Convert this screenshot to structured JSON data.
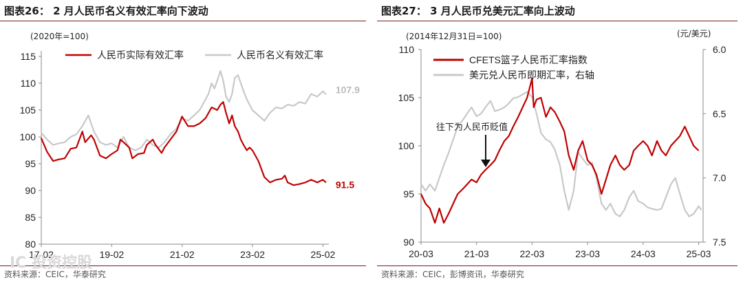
{
  "left": {
    "title": "图表26：  2 月人民币名义有效汇率向下波动",
    "unit": "(2020年=100)",
    "source": "资料来源：CEIC，华泰研究",
    "watermark": "IC 投资控股"
  },
  "right": {
    "title": "图表27：  3 月人民币兑美元汇率向上波动",
    "unit_left": "(2014年12月31日=100)",
    "unit_right": "(元/美元)",
    "annotation": "往下为人民币贬值",
    "source": "资料来源：CEIC，彭博资讯，华泰研究"
  },
  "colors": {
    "red": "#c00000",
    "grey": "#c8c8c8",
    "accent_rule": "#7a1a1a"
  },
  "chart_data": [
    {
      "type": "line",
      "title": "",
      "ylim": [
        80,
        115
      ],
      "yticks": [
        80,
        85,
        90,
        95,
        100,
        105,
        110,
        115
      ],
      "xlim": [
        2017.083,
        2025.25
      ],
      "xticks": [
        {
          "label": "17-02",
          "x": 2017.083
        },
        {
          "label": "19-02",
          "x": 2019.083
        },
        {
          "label": "21-02",
          "x": 2021.083
        },
        {
          "label": "23-02",
          "x": 2023.083
        },
        {
          "label": "25-02",
          "x": 2025.083
        }
      ],
      "series": [
        {
          "name": "人民币实际有效汇率",
          "color": "#c00000",
          "end_label": "91.5",
          "points": [
            [
              2017.08,
              99.8
            ],
            [
              2017.25,
              97.2
            ],
            [
              2017.42,
              95.5
            ],
            [
              2017.58,
              95.8
            ],
            [
              2017.75,
              96.0
            ],
            [
              2017.92,
              97.8
            ],
            [
              2018.08,
              98.0
            ],
            [
              2018.25,
              101.0
            ],
            [
              2018.33,
              99.0
            ],
            [
              2018.5,
              100.3
            ],
            [
              2018.58,
              99.5
            ],
            [
              2018.75,
              96.5
            ],
            [
              2018.92,
              96.0
            ],
            [
              2019.08,
              96.8
            ],
            [
              2019.25,
              97.5
            ],
            [
              2019.33,
              99.5
            ],
            [
              2019.42,
              99.0
            ],
            [
              2019.58,
              98.0
            ],
            [
              2019.67,
              96.0
            ],
            [
              2019.83,
              96.8
            ],
            [
              2020.0,
              97.0
            ],
            [
              2020.08,
              98.5
            ],
            [
              2020.25,
              99.5
            ],
            [
              2020.33,
              98.5
            ],
            [
              2020.5,
              97.0
            ],
            [
              2020.58,
              98.0
            ],
            [
              2020.75,
              99.5
            ],
            [
              2020.92,
              101.0
            ],
            [
              2021.08,
              103.8
            ],
            [
              2021.25,
              102.0
            ],
            [
              2021.42,
              102.0
            ],
            [
              2021.58,
              102.5
            ],
            [
              2021.75,
              103.5
            ],
            [
              2021.92,
              105.5
            ],
            [
              2022.08,
              105.0
            ],
            [
              2022.17,
              106.0
            ],
            [
              2022.25,
              106.5
            ],
            [
              2022.33,
              104.5
            ],
            [
              2022.42,
              102.5
            ],
            [
              2022.5,
              104.0
            ],
            [
              2022.58,
              102.0
            ],
            [
              2022.67,
              101.0
            ],
            [
              2022.75,
              99.5
            ],
            [
              2022.83,
              98.5
            ],
            [
              2022.92,
              97.5
            ],
            [
              2023.0,
              98.0
            ],
            [
              2023.08,
              97.5
            ],
            [
              2023.25,
              95.5
            ],
            [
              2023.42,
              92.5
            ],
            [
              2023.58,
              91.5
            ],
            [
              2023.75,
              92.0
            ],
            [
              2023.92,
              92.2
            ],
            [
              2024.0,
              92.8
            ],
            [
              2024.08,
              91.5
            ],
            [
              2024.25,
              91.0
            ],
            [
              2024.42,
              91.2
            ],
            [
              2024.58,
              91.5
            ],
            [
              2024.75,
              92.0
            ],
            [
              2024.92,
              91.5
            ],
            [
              2025.08,
              92.0
            ],
            [
              2025.17,
              91.5
            ]
          ]
        },
        {
          "name": "人民币名义有效汇率",
          "color": "#c8c8c8",
          "end_label": "107.9",
          "points": [
            [
              2017.08,
              100.8
            ],
            [
              2017.25,
              99.5
            ],
            [
              2017.42,
              98.5
            ],
            [
              2017.58,
              98.8
            ],
            [
              2017.75,
              99.0
            ],
            [
              2017.92,
              100.0
            ],
            [
              2018.08,
              100.5
            ],
            [
              2018.25,
              102.0
            ],
            [
              2018.42,
              104.0
            ],
            [
              2018.58,
              101.0
            ],
            [
              2018.75,
              99.0
            ],
            [
              2018.92,
              98.5
            ],
            [
              2019.08,
              98.8
            ],
            [
              2019.25,
              98.0
            ],
            [
              2019.42,
              100.0
            ],
            [
              2019.58,
              98.0
            ],
            [
              2019.75,
              97.5
            ],
            [
              2019.92,
              98.0
            ],
            [
              2020.08,
              99.5
            ],
            [
              2020.25,
              98.5
            ],
            [
              2020.42,
              98.0
            ],
            [
              2020.58,
              99.0
            ],
            [
              2020.75,
              100.5
            ],
            [
              2020.92,
              101.5
            ],
            [
              2021.08,
              103.5
            ],
            [
              2021.25,
              103.0
            ],
            [
              2021.42,
              104.0
            ],
            [
              2021.58,
              105.0
            ],
            [
              2021.75,
              107.0
            ],
            [
              2021.83,
              108.0
            ],
            [
              2021.92,
              110.0
            ],
            [
              2022.0,
              109.0
            ],
            [
              2022.08,
              110.5
            ],
            [
              2022.17,
              112.3
            ],
            [
              2022.25,
              110.5
            ],
            [
              2022.33,
              107.5
            ],
            [
              2022.42,
              106.5
            ],
            [
              2022.5,
              108.0
            ],
            [
              2022.58,
              111.0
            ],
            [
              2022.67,
              111.5
            ],
            [
              2022.75,
              110.0
            ],
            [
              2022.83,
              108.5
            ],
            [
              2022.92,
              107.0
            ],
            [
              2023.0,
              106.0
            ],
            [
              2023.08,
              105.0
            ],
            [
              2023.25,
              104.0
            ],
            [
              2023.42,
              103.0
            ],
            [
              2023.58,
              104.5
            ],
            [
              2023.75,
              105.5
            ],
            [
              2023.92,
              105.3
            ],
            [
              2024.08,
              106.0
            ],
            [
              2024.25,
              105.8
            ],
            [
              2024.42,
              106.5
            ],
            [
              2024.58,
              106.2
            ],
            [
              2024.75,
              108.0
            ],
            [
              2024.92,
              107.5
            ],
            [
              2025.08,
              108.5
            ],
            [
              2025.17,
              107.9
            ]
          ]
        }
      ]
    },
    {
      "type": "line",
      "title": "",
      "ylim": [
        90,
        110
      ],
      "yticks": [
        90,
        95,
        100,
        105,
        110
      ],
      "y2lim": [
        7.5,
        6.0
      ],
      "y2ticks": [
        "6.0",
        "6.5",
        "7.0",
        "7.5"
      ],
      "xlim": [
        2020.17,
        2025.25
      ],
      "xticks": [
        {
          "label": "20-03",
          "x": 2020.17
        },
        {
          "label": "21-03",
          "x": 2021.17
        },
        {
          "label": "22-03",
          "x": 2022.17
        },
        {
          "label": "23-03",
          "x": 2023.17
        },
        {
          "label": "24-03",
          "x": 2024.17
        },
        {
          "label": "25-03",
          "x": 2025.17
        }
      ],
      "series": [
        {
          "name": "CFETS篮子人民币汇率指数",
          "color": "#c00000",
          "axis": "left",
          "points": [
            [
              2020.17,
              95.0
            ],
            [
              2020.25,
              94.0
            ],
            [
              2020.33,
              93.5
            ],
            [
              2020.42,
              92.0
            ],
            [
              2020.5,
              93.5
            ],
            [
              2020.58,
              92.0
            ],
            [
              2020.67,
              93.0
            ],
            [
              2020.75,
              94.0
            ],
            [
              2020.83,
              95.0
            ],
            [
              2020.92,
              95.5
            ],
            [
              2021.0,
              96.0
            ],
            [
              2021.08,
              96.5
            ],
            [
              2021.17,
              96.2
            ],
            [
              2021.25,
              97.0
            ],
            [
              2021.33,
              97.5
            ],
            [
              2021.42,
              98.0
            ],
            [
              2021.5,
              98.5
            ],
            [
              2021.58,
              99.5
            ],
            [
              2021.67,
              100.5
            ],
            [
              2021.75,
              101.0
            ],
            [
              2021.83,
              102.0
            ],
            [
              2021.92,
              103.0
            ],
            [
              2022.0,
              104.0
            ],
            [
              2022.08,
              105.0
            ],
            [
              2022.17,
              107.0
            ],
            [
              2022.2,
              104.0
            ],
            [
              2022.25,
              104.8
            ],
            [
              2022.33,
              105.0
            ],
            [
              2022.42,
              103.0
            ],
            [
              2022.5,
              104.0
            ],
            [
              2022.58,
              103.5
            ],
            [
              2022.67,
              102.5
            ],
            [
              2022.75,
              101.5
            ],
            [
              2022.83,
              99.0
            ],
            [
              2022.92,
              97.5
            ],
            [
              2023.0,
              99.5
            ],
            [
              2023.08,
              100.5
            ],
            [
              2023.17,
              98.5
            ],
            [
              2023.25,
              98.0
            ],
            [
              2023.33,
              97.0
            ],
            [
              2023.42,
              95.0
            ],
            [
              2023.5,
              96.5
            ],
            [
              2023.58,
              98.0
            ],
            [
              2023.67,
              99.0
            ],
            [
              2023.75,
              98.0
            ],
            [
              2023.83,
              97.5
            ],
            [
              2023.92,
              98.0
            ],
            [
              2024.0,
              99.5
            ],
            [
              2024.08,
              100.0
            ],
            [
              2024.17,
              100.5
            ],
            [
              2024.25,
              100.0
            ],
            [
              2024.33,
              99.0
            ],
            [
              2024.42,
              100.5
            ],
            [
              2024.5,
              99.5
            ],
            [
              2024.58,
              99.0
            ],
            [
              2024.67,
              100.0
            ],
            [
              2024.75,
              100.5
            ],
            [
              2024.83,
              101.0
            ],
            [
              2024.92,
              102.0
            ],
            [
              2025.0,
              101.0
            ],
            [
              2025.08,
              100.0
            ],
            [
              2025.17,
              99.5
            ]
          ]
        },
        {
          "name": "美元兑人民币即期汇率，右轴",
          "color": "#c8c8c8",
          "axis": "right",
          "points": [
            [
              2020.17,
              7.05
            ],
            [
              2020.25,
              7.1
            ],
            [
              2020.33,
              7.05
            ],
            [
              2020.42,
              7.1
            ],
            [
              2020.5,
              7.0
            ],
            [
              2020.58,
              6.9
            ],
            [
              2020.67,
              6.8
            ],
            [
              2020.75,
              6.7
            ],
            [
              2020.83,
              6.6
            ],
            [
              2020.92,
              6.55
            ],
            [
              2021.0,
              6.5
            ],
            [
              2021.08,
              6.45
            ],
            [
              2021.17,
              6.52
            ],
            [
              2021.25,
              6.5
            ],
            [
              2021.33,
              6.45
            ],
            [
              2021.42,
              6.4
            ],
            [
              2021.5,
              6.48
            ],
            [
              2021.58,
              6.47
            ],
            [
              2021.67,
              6.45
            ],
            [
              2021.75,
              6.42
            ],
            [
              2021.83,
              6.38
            ],
            [
              2021.92,
              6.37
            ],
            [
              2022.0,
              6.35
            ],
            [
              2022.08,
              6.33
            ],
            [
              2022.17,
              6.37
            ],
            [
              2022.25,
              6.5
            ],
            [
              2022.33,
              6.65
            ],
            [
              2022.42,
              6.7
            ],
            [
              2022.5,
              6.72
            ],
            [
              2022.58,
              6.78
            ],
            [
              2022.67,
              6.9
            ],
            [
              2022.75,
              7.1
            ],
            [
              2022.83,
              7.25
            ],
            [
              2022.92,
              7.1
            ],
            [
              2023.0,
              6.8
            ],
            [
              2023.08,
              6.85
            ],
            [
              2023.17,
              6.9
            ],
            [
              2023.25,
              6.88
            ],
            [
              2023.33,
              7.0
            ],
            [
              2023.42,
              7.2
            ],
            [
              2023.5,
              7.25
            ],
            [
              2023.58,
              7.2
            ],
            [
              2023.67,
              7.28
            ],
            [
              2023.75,
              7.3
            ],
            [
              2023.83,
              7.25
            ],
            [
              2023.92,
              7.15
            ],
            [
              2024.0,
              7.1
            ],
            [
              2024.08,
              7.18
            ],
            [
              2024.17,
              7.2
            ],
            [
              2024.25,
              7.23
            ],
            [
              2024.33,
              7.24
            ],
            [
              2024.42,
              7.25
            ],
            [
              2024.5,
              7.24
            ],
            [
              2024.58,
              7.15
            ],
            [
              2024.67,
              7.05
            ],
            [
              2024.75,
              7.0
            ],
            [
              2024.83,
              7.12
            ],
            [
              2024.92,
              7.25
            ],
            [
              2025.0,
              7.3
            ],
            [
              2025.08,
              7.28
            ],
            [
              2025.17,
              7.22
            ],
            [
              2025.22,
              7.25
            ]
          ]
        }
      ]
    }
  ]
}
